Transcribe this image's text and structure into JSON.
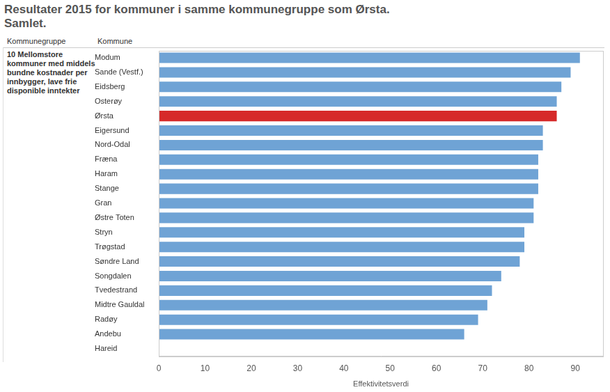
{
  "chart_data": {
    "type": "bar",
    "orientation": "horizontal",
    "title": [
      "Resultater 2015 for kommuner i samme kommunegruppe som Ørsta.",
      "Samlet."
    ],
    "group_header": "Kommunegruppe",
    "category_header": "Kommune",
    "group": "10 Mellomstore kommuner med middels bundne kostnader per innbygger, lave frie disponible inntekter",
    "x_label": "Effektivitetsverdi",
    "categories": [
      "Modum",
      "Sande (Vestf.)",
      "Eidsberg",
      "Osterøy",
      "Ørsta",
      "Eigersund",
      "Nord-Odal",
      "Fræna",
      "Haram",
      "Stange",
      "Gran",
      "Østre Toten",
      "Stryn",
      "Trøgstad",
      "Søndre Land",
      "Songdalen",
      "Tvedestrand",
      "Midtre Gauldal",
      "Radøy",
      "Andebu",
      "Hareid"
    ],
    "values": [
      91,
      89,
      87,
      86,
      86,
      83,
      83,
      82,
      82,
      82,
      81,
      81,
      79,
      79,
      78,
      74,
      72,
      71,
      69,
      66,
      null
    ],
    "colors": [
      "#6fa3d5",
      "#6fa3d5",
      "#6fa3d5",
      "#6fa3d5",
      "#d62a2a",
      "#6fa3d5",
      "#6fa3d5",
      "#6fa3d5",
      "#6fa3d5",
      "#6fa3d5",
      "#6fa3d5",
      "#6fa3d5",
      "#6fa3d5",
      "#6fa3d5",
      "#6fa3d5",
      "#6fa3d5",
      "#6fa3d5",
      "#6fa3d5",
      "#6fa3d5",
      "#6fa3d5",
      "#6fa3d5"
    ],
    "xlim": [
      0,
      96
    ],
    "xticks": [
      0,
      10,
      20,
      30,
      40,
      50,
      60,
      70,
      80,
      90
    ],
    "grid": false
  }
}
